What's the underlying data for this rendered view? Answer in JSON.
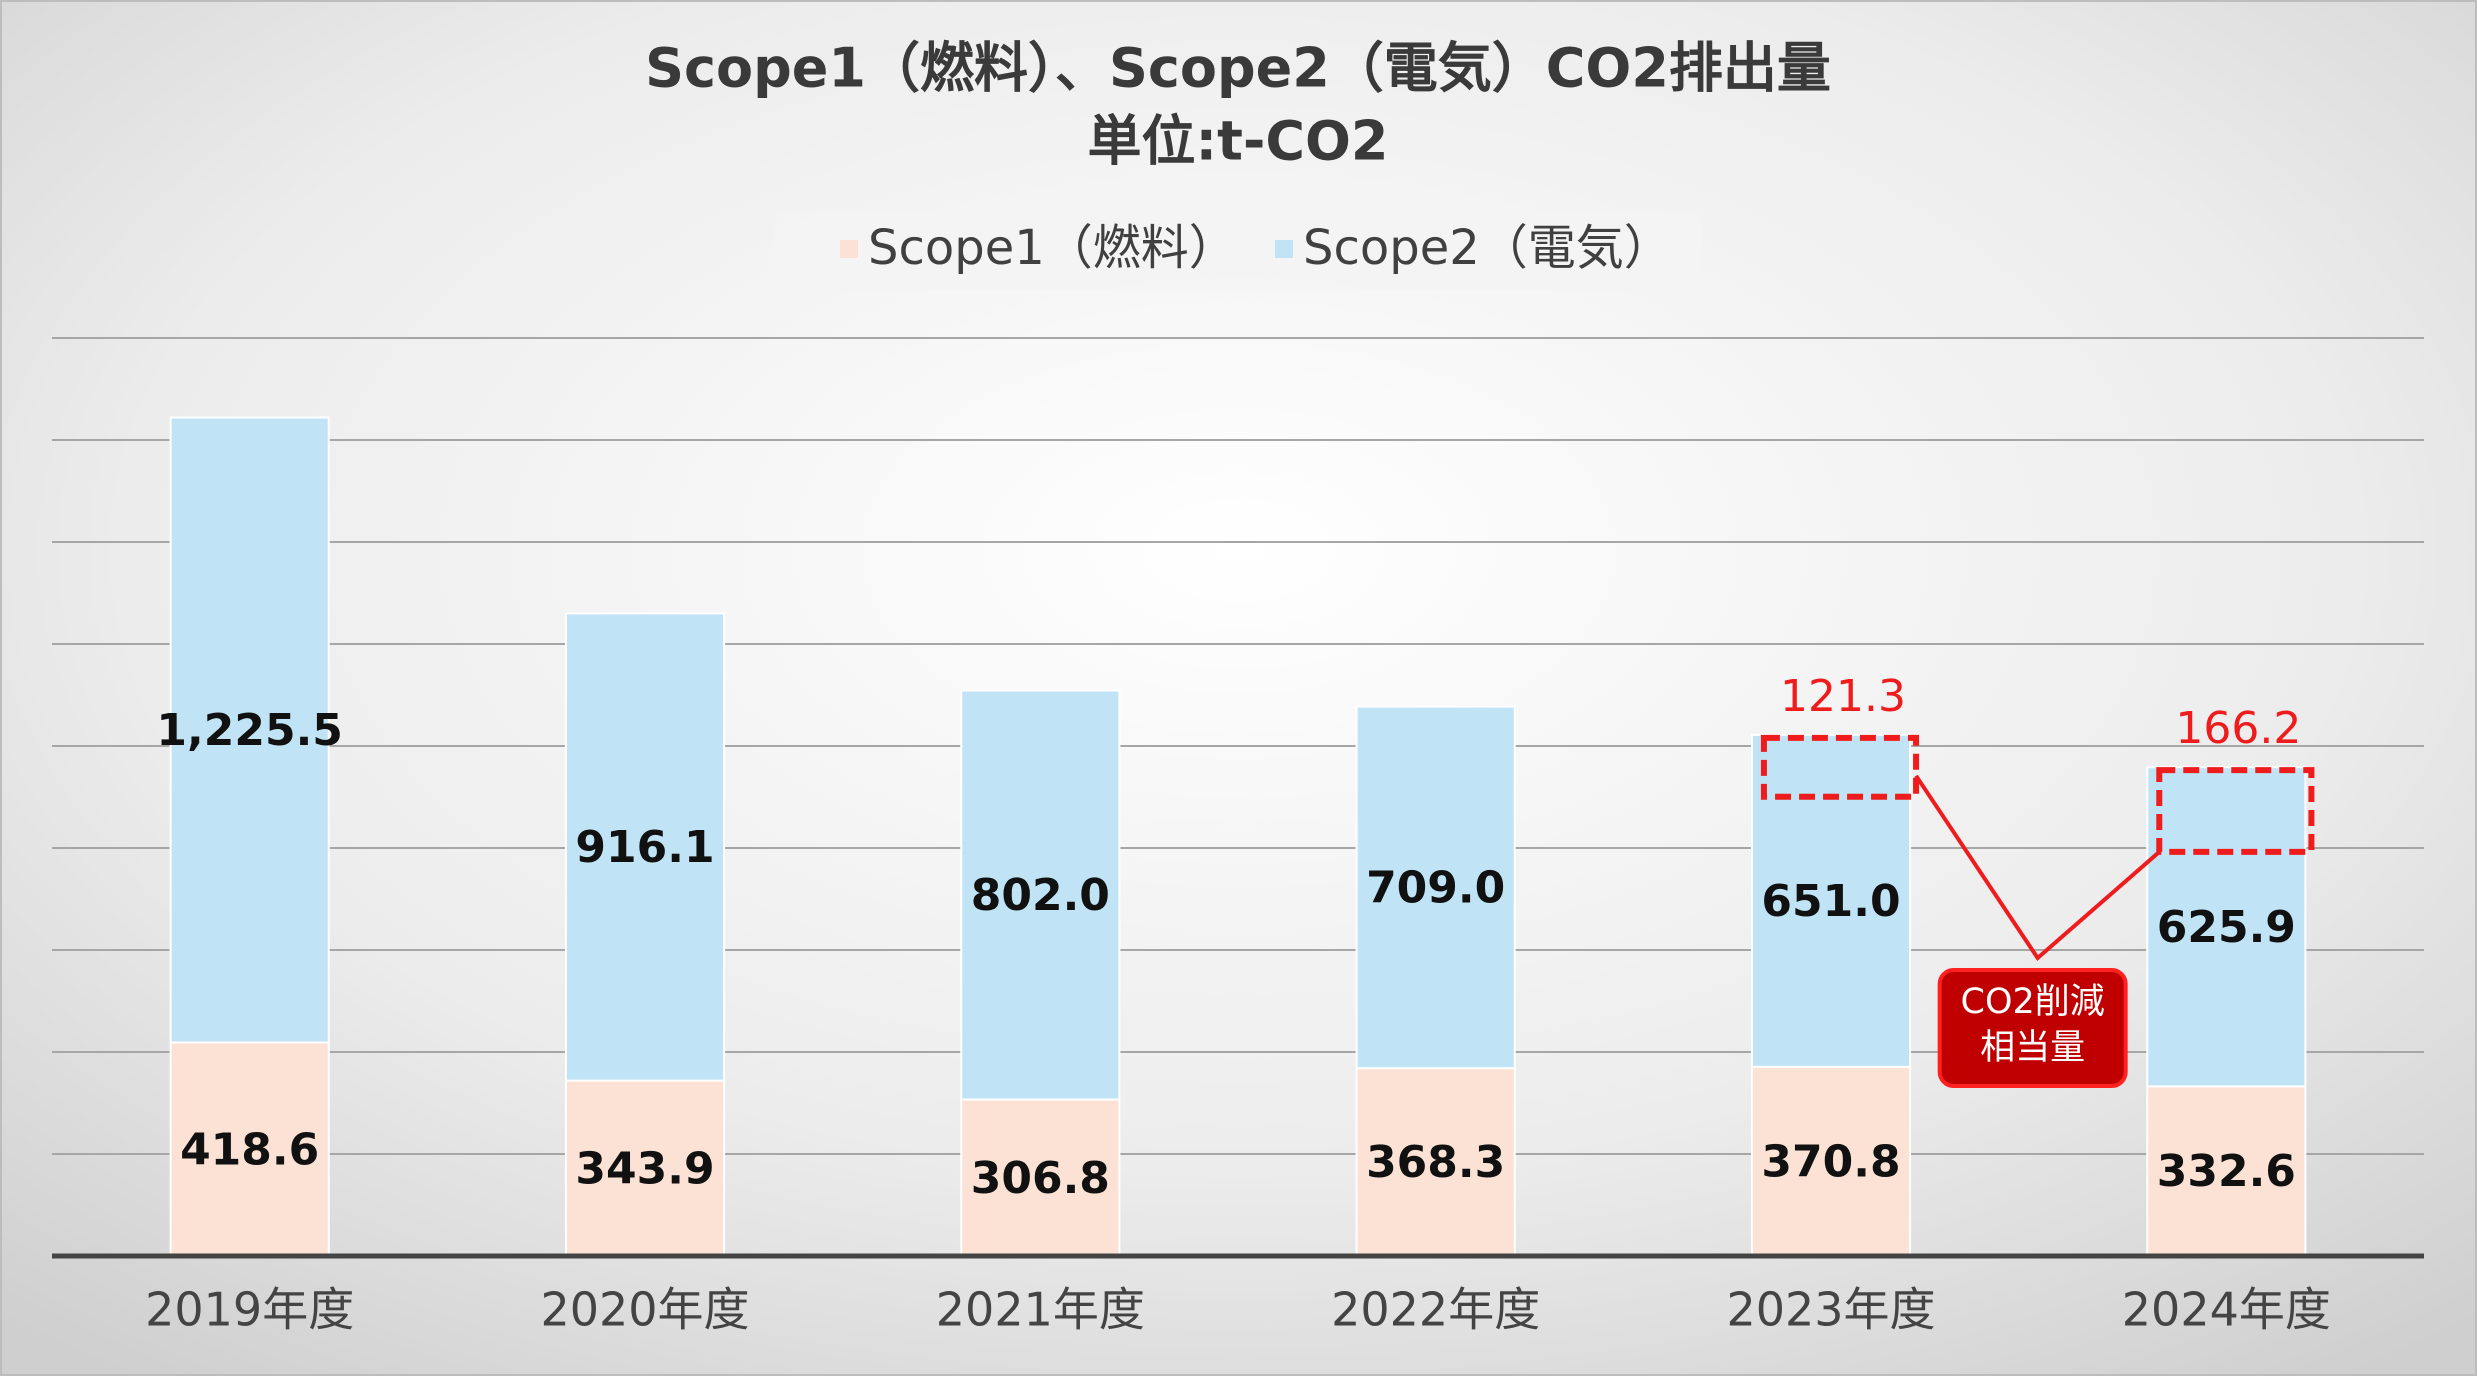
{
  "chart_data": {
    "type": "stacked_bar",
    "title": "Scope1（燃料）、Scope2（電気）CO2排出量",
    "subtitle": "単位:t-CO2",
    "categories": [
      "2019年度",
      "2020年度",
      "2021年度",
      "2022年度",
      "2023年度",
      "2024年度"
    ],
    "series": [
      {
        "name": "Scope1（燃料）",
        "color": "#fbe2d5",
        "values": [
          418.6,
          343.9,
          306.8,
          368.3,
          370.8,
          332.6
        ],
        "value_labels": [
          "418.6",
          "343.9",
          "306.8",
          "368.3",
          "370.8",
          "332.6"
        ]
      },
      {
        "name": "Scope2（電気）",
        "color": "#c0e4f5",
        "values": [
          1225.5,
          916.1,
          802.0,
          709.0,
          651.0,
          625.9
        ],
        "value_labels": [
          "1,225.5",
          "916.1",
          "802.0",
          "709.0",
          "651.0",
          "625.9"
        ]
      }
    ],
    "ylim": [
      0,
      1800
    ],
    "yticks": [
      0,
      200,
      400,
      600,
      800,
      1000,
      1200,
      1400,
      1600,
      1800
    ],
    "grid": true,
    "legend": "top",
    "annotations": [
      {
        "category": "2023年度",
        "value": 121.3
      },
      {
        "category": "2024年度",
        "value": 166.2
      }
    ],
    "annotation_color": "#ee1c1c",
    "callout": [
      "CO2削減",
      "相当量"
    ]
  }
}
